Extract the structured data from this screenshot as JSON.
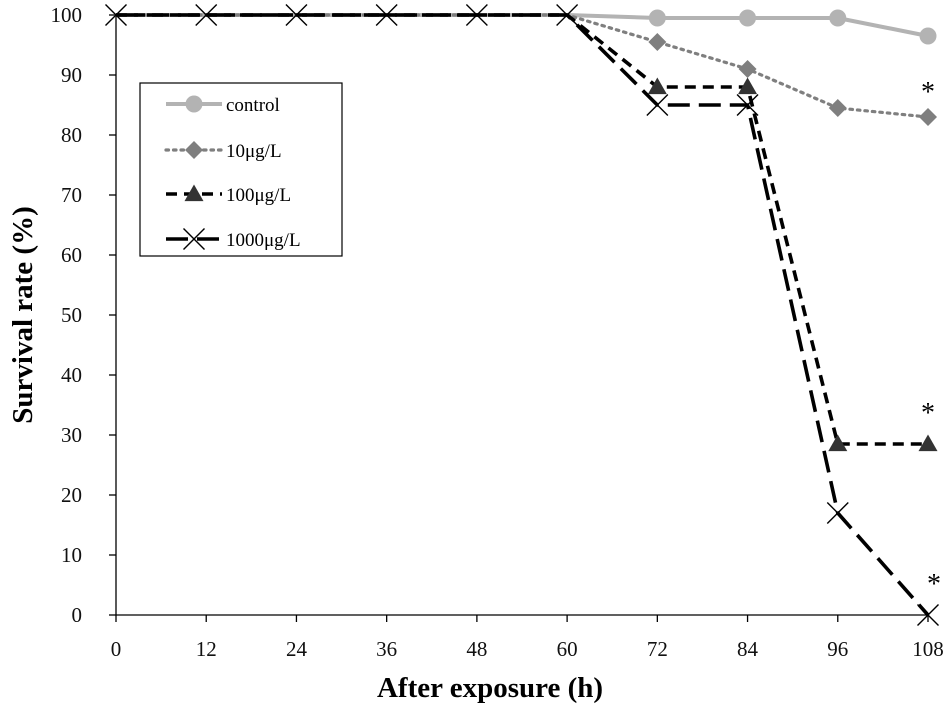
{
  "chart_data": {
    "type": "line",
    "title": "",
    "xlabel": "After exposure (h)",
    "ylabel": "Survival rate (%)",
    "xlim": [
      0,
      108
    ],
    "ylim": [
      0,
      100
    ],
    "x": [
      0,
      12,
      24,
      36,
      48,
      60,
      72,
      84,
      96,
      108
    ],
    "x_ticks": [
      "0",
      "12",
      "24",
      "36",
      "48",
      "60",
      "72",
      "84",
      "96",
      "108"
    ],
    "y_ticks": [
      "0",
      "10",
      "20",
      "30",
      "40",
      "50",
      "60",
      "70",
      "80",
      "90",
      "100"
    ],
    "grid": false,
    "legend_position": "top-left",
    "series": [
      {
        "name": "control",
        "values": [
          100,
          100,
          100,
          100,
          100,
          100,
          99.5,
          99.5,
          99.5,
          96.5
        ],
        "color": "#b3b3b3",
        "line_style": "solid",
        "marker": "circle"
      },
      {
        "name": "10μg/L",
        "values": [
          100,
          100,
          100,
          100,
          100,
          100,
          95.5,
          91,
          84.5,
          83
        ],
        "color": "#7f7f7f",
        "line_style": "dotted",
        "marker": "diamond"
      },
      {
        "name": "100μg/L",
        "values": [
          100,
          100,
          100,
          100,
          100,
          100,
          88,
          88,
          28.5,
          28.5
        ],
        "color": "#000000",
        "line_style": "dashed",
        "marker": "triangle"
      },
      {
        "name": "1000μg/L",
        "values": [
          100,
          100,
          100,
          100,
          100,
          100,
          85,
          85,
          17,
          0
        ],
        "color": "#000000",
        "line_style": "long-dash",
        "marker": "x"
      }
    ],
    "annotations": [
      {
        "text": "*",
        "x": 108,
        "y": 83,
        "series": "10μg/L"
      },
      {
        "text": "*",
        "x": 108,
        "y": 28.5,
        "series": "100μg/L"
      },
      {
        "text": "*",
        "x": 108,
        "y": 0,
        "series": "1000μg/L"
      }
    ]
  }
}
